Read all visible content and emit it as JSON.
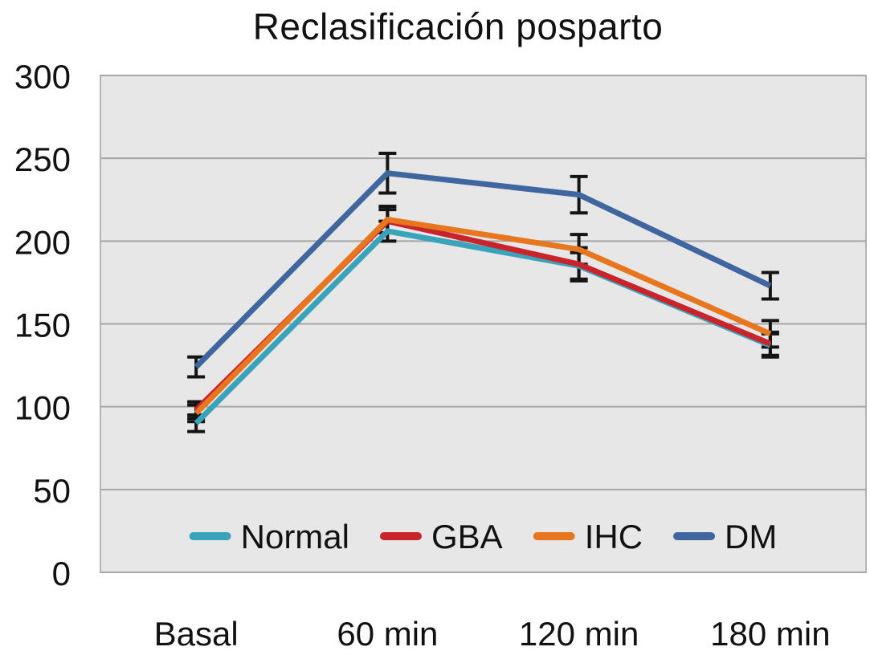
{
  "chart_data": {
    "type": "line",
    "title": "Reclasificación posparto",
    "categories": [
      "Basal",
      "60 min",
      "120 min",
      "180 min"
    ],
    "series": [
      {
        "name": "Normal",
        "color": "#38a3ba",
        "values": [
          90,
          206,
          185,
          137
        ],
        "errors": [
          5,
          6,
          8,
          7
        ]
      },
      {
        "name": "GBA",
        "color": "#c9232b",
        "values": [
          98,
          212,
          186,
          138
        ],
        "errors": [
          5,
          7,
          10,
          7
        ]
      },
      {
        "name": "IHC",
        "color": "#e8761f",
        "values": [
          96,
          213,
          195,
          144
        ],
        "errors": [
          5,
          8,
          9,
          8
        ]
      },
      {
        "name": "DM",
        "color": "#40669f",
        "values": [
          124,
          241,
          228,
          173
        ],
        "errors": [
          6,
          12,
          11,
          8
        ]
      }
    ],
    "xlabel": "",
    "ylabel": "",
    "ylim": [
      0,
      300
    ],
    "yticks": [
      0,
      50,
      100,
      150,
      200,
      250,
      300
    ],
    "grid": true,
    "legend_position": "inside-bottom-center",
    "plot_bg_color": "#e7e7e7",
    "grid_color": "#a6a6a6",
    "plot_border_color": "#b3b3b3",
    "error_bar_color": "#141414",
    "text_color": "#111111"
  }
}
